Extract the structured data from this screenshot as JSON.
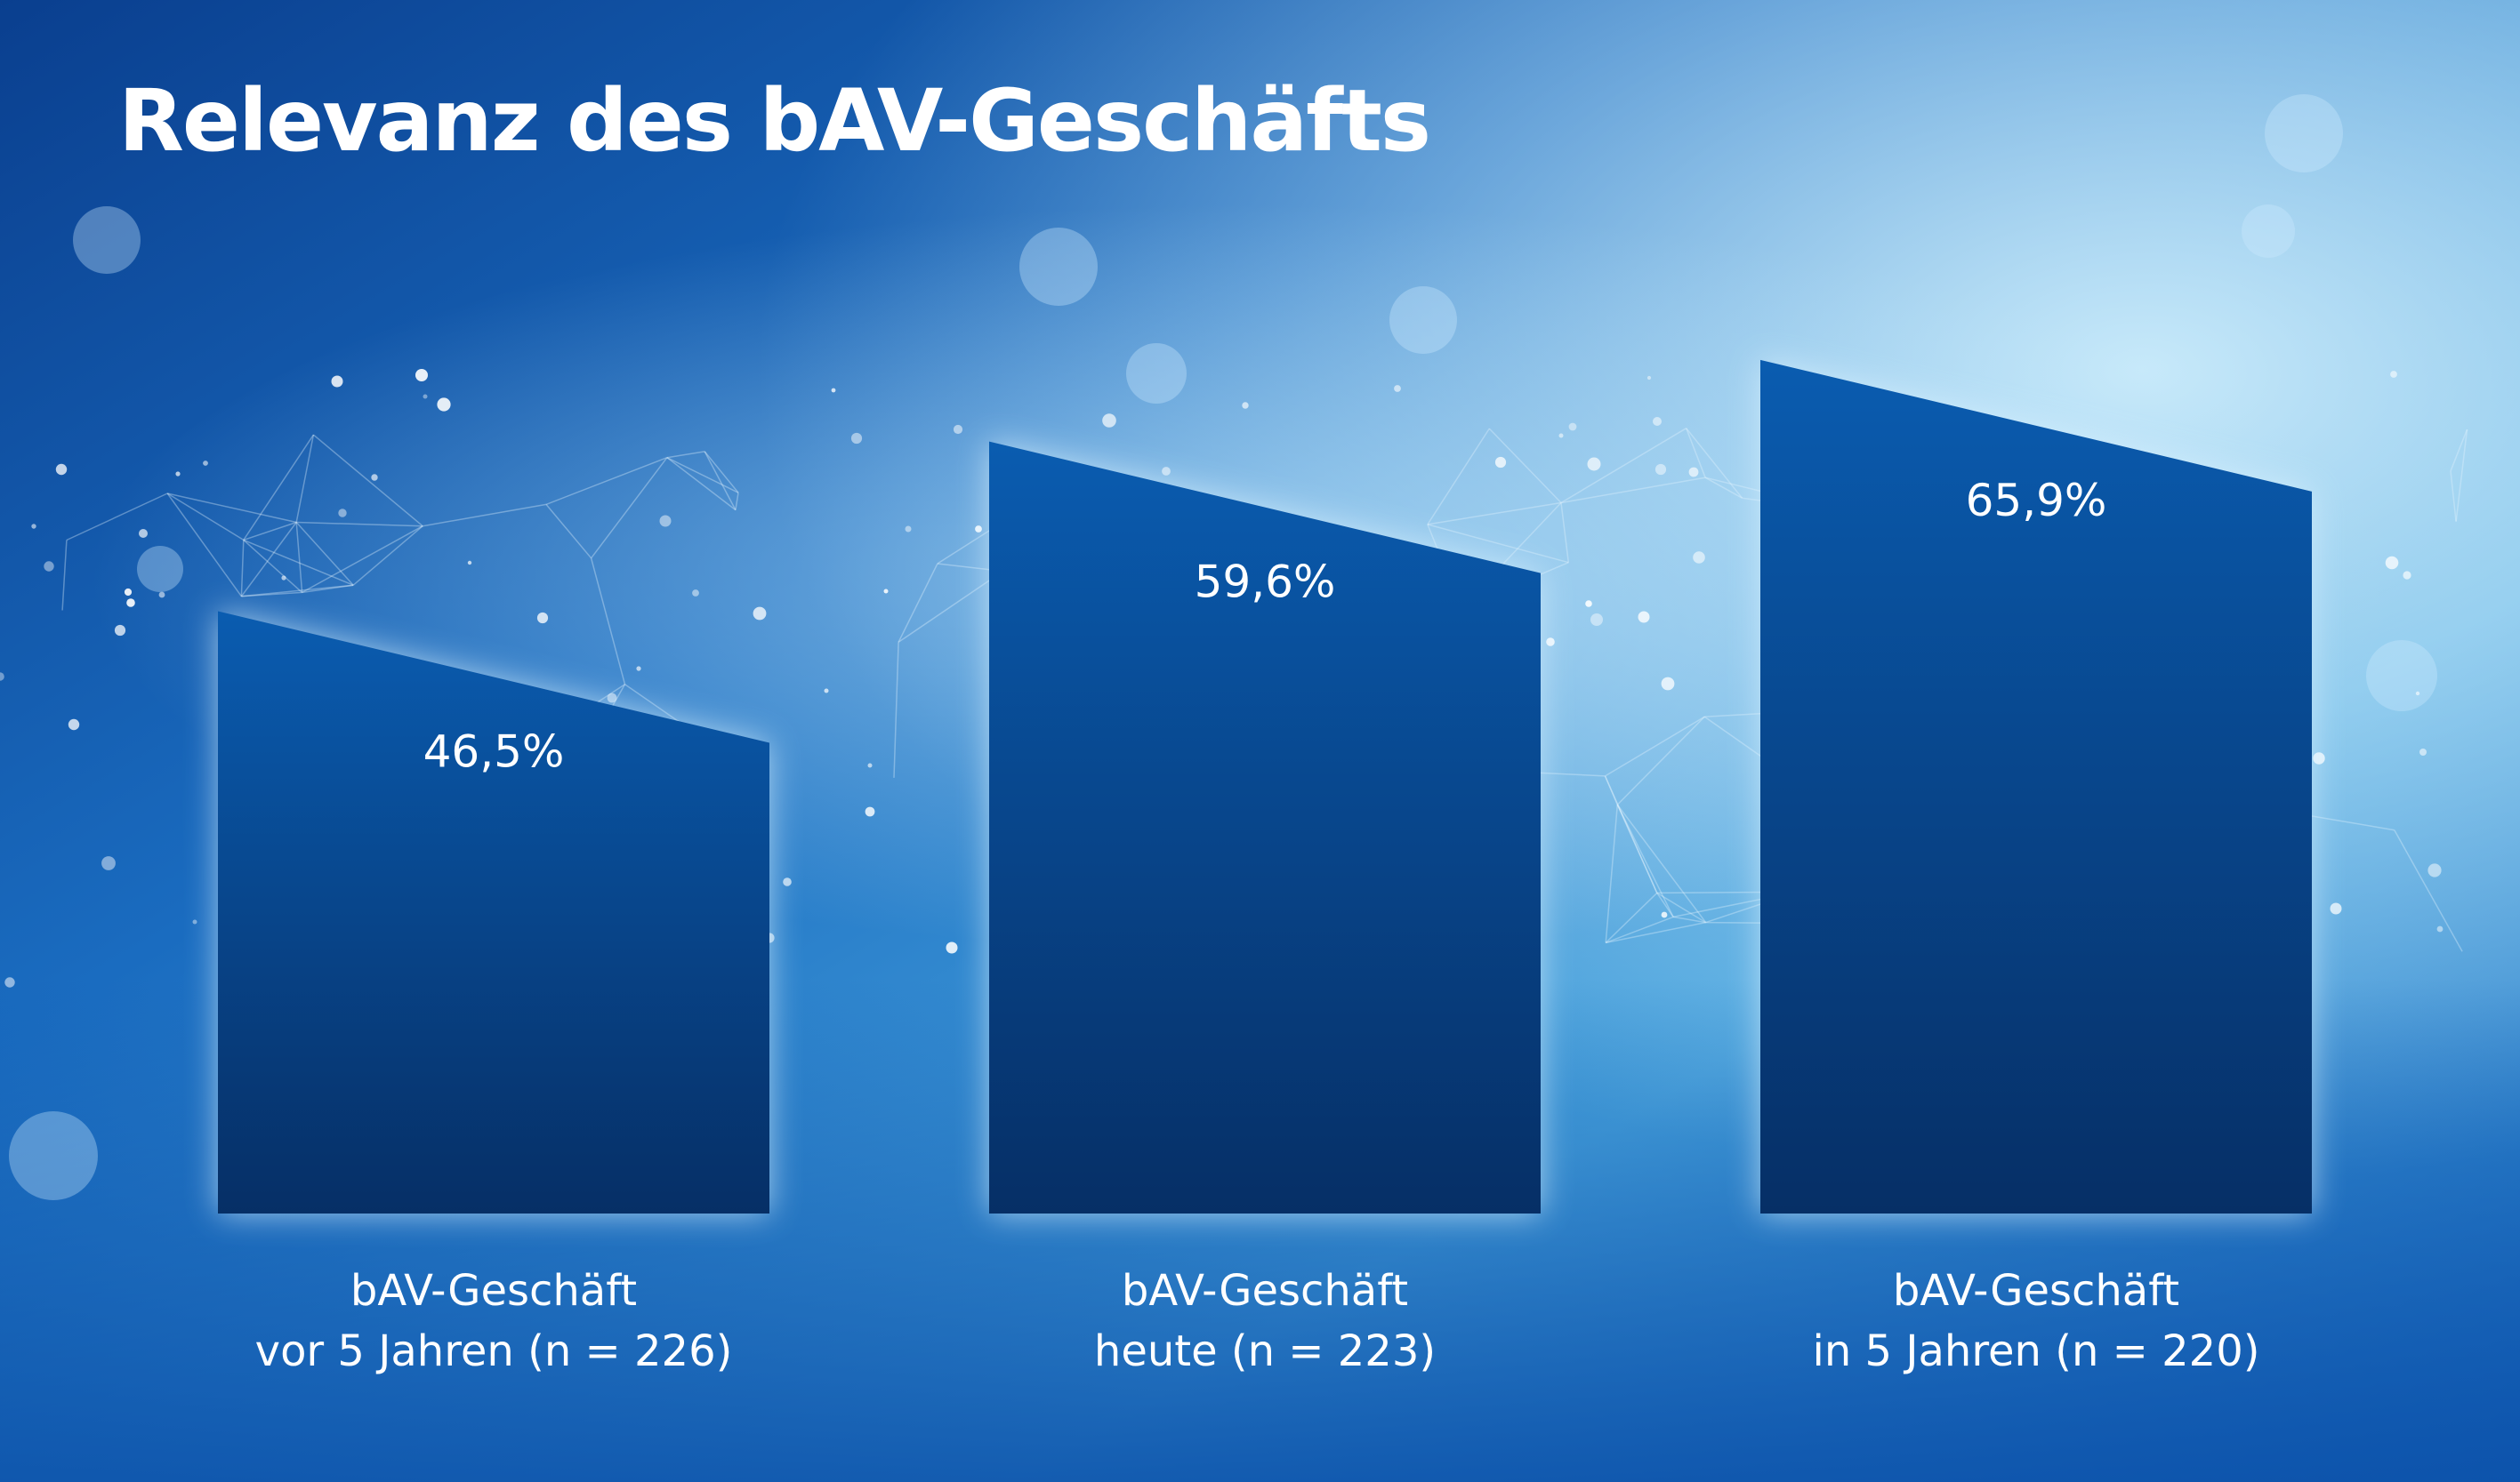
{
  "chart_data": {
    "type": "bar",
    "title": "Relevanz des bAV-Geschäfts",
    "categories": [
      [
        "bAV-Geschäft",
        "vor 5 Jahren (n = 226)"
      ],
      [
        "bAV-Geschäft",
        "heute (n = 223)"
      ],
      [
        "bAV-Geschäft",
        "in 5 Jahren (n = 220)"
      ]
    ],
    "values": [
      46.5,
      59.6,
      65.9
    ],
    "value_labels": [
      "46,5%",
      "59,6%",
      "65,9%"
    ],
    "unit": "%",
    "grid": false,
    "legend": "none"
  },
  "colors": {
    "background_dark": "#0a3f8f",
    "background_light": "#9fd6f3",
    "bar_top": "#0a5cb0",
    "bar_bottom": "#062f66",
    "text": "#ffffff"
  }
}
